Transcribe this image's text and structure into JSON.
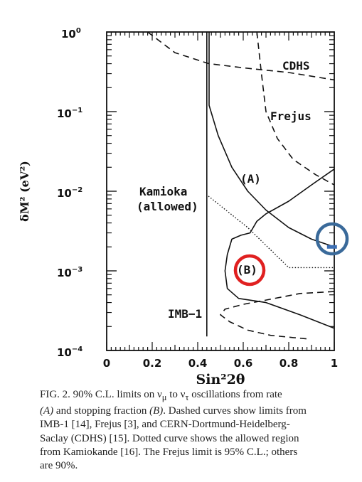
{
  "chart_data": {
    "type": "line",
    "title": "",
    "xlabel": "Sin²2θ",
    "ylabel": "δM² (eV²)",
    "xlim": [
      0,
      1
    ],
    "ylim_log10": [
      -4,
      0
    ],
    "y_scale": "log",
    "x_ticks": [
      "0",
      "0.2",
      "0.4",
      "0.6",
      "0.8",
      "1"
    ],
    "y_ticks": [
      {
        "base": "10",
        "exp": "0"
      },
      {
        "base": "10",
        "exp": "−1"
      },
      {
        "base": "10",
        "exp": "−2"
      },
      {
        "base": "10",
        "exp": "−3"
      },
      {
        "base": "10",
        "exp": "−4"
      }
    ],
    "grid": false,
    "series": [
      {
        "name": "CDHS",
        "style": "dashed",
        "points": [
          [
            0.18,
            1.0
          ],
          [
            0.3,
            0.55
          ],
          [
            0.45,
            0.4
          ],
          [
            0.62,
            0.35
          ],
          [
            0.8,
            0.31
          ],
          [
            1.0,
            0.25
          ]
        ]
      },
      {
        "name": "Frejus",
        "style": "dashed",
        "points": [
          [
            0.66,
            1.0
          ],
          [
            0.68,
            0.3
          ],
          [
            0.7,
            0.1
          ],
          [
            0.75,
            0.046
          ],
          [
            0.82,
            0.025
          ],
          [
            0.92,
            0.016
          ],
          [
            1.0,
            0.012
          ]
        ]
      },
      {
        "name": "IMB-1",
        "style": "dashed",
        "points": [
          [
            1.0,
            0.00055
          ],
          [
            0.85,
            0.00052
          ],
          [
            0.7,
            0.00043
          ],
          [
            0.6,
            0.00038
          ],
          [
            0.52,
            0.00033
          ],
          [
            0.5,
            0.00028
          ],
          [
            0.54,
            0.00023
          ],
          [
            0.62,
            0.00018
          ],
          [
            0.72,
            0.000155
          ],
          [
            0.82,
            0.000145
          ],
          [
            0.88,
            0.00014
          ]
        ]
      },
      {
        "name": "Kamioka (allowed)",
        "style": "dotted",
        "points": [
          [
            0.44,
            1.0
          ],
          [
            0.44,
            0.009
          ],
          [
            0.62,
            0.0035
          ],
          [
            0.8,
            0.0011
          ],
          [
            1.0,
            0.0011
          ]
        ]
      },
      {
        "name": "(A)",
        "style": "solid",
        "points": [
          [
            0.45,
            1.0
          ],
          [
            0.45,
            0.12
          ],
          [
            0.49,
            0.05
          ],
          [
            0.55,
            0.02
          ],
          [
            0.62,
            0.01
          ],
          [
            0.7,
            0.0058
          ],
          [
            0.8,
            0.0035
          ],
          [
            0.9,
            0.0025
          ],
          [
            1.0,
            0.002
          ]
        ]
      },
      {
        "name": "(A) vertical",
        "style": "solid",
        "points": [
          [
            0.44,
            1.0
          ],
          [
            0.44,
            0.00015
          ]
        ]
      },
      {
        "name": "(B)",
        "style": "solid",
        "points": [
          [
            1.0,
            0.019
          ],
          [
            0.9,
            0.012
          ],
          [
            0.8,
            0.0075
          ],
          [
            0.7,
            0.0052
          ],
          [
            0.66,
            0.0042
          ],
          [
            0.63,
            0.003
          ],
          [
            0.59,
            0.0028
          ],
          [
            0.55,
            0.0025
          ],
          [
            0.53,
            0.0016
          ],
          [
            0.52,
            0.001
          ],
          [
            0.53,
            0.0006
          ],
          [
            0.58,
            0.00045
          ],
          [
            0.7,
            0.0004
          ],
          [
            0.85,
            0.00028
          ],
          [
            1.0,
            0.00019
          ]
        ]
      }
    ],
    "annotations": [
      "CDHS",
      "Frejus",
      "(A)",
      "Kamioka",
      "(allowed)",
      "(B)",
      "IMB−1"
    ],
    "highlights": [
      {
        "shape": "circle",
        "color": "#e02020",
        "around": "(B)"
      },
      {
        "shape": "circle",
        "color": "#3a6a9a",
        "around": "right edge near 0.002"
      }
    ],
    "marker": {
      "color": "#3d6fb4",
      "x": 0.99,
      "y": 0.002
    }
  },
  "caption": {
    "line1": "FIG. 2.  90% C.L. limits on ν",
    "line1_sub1": "μ",
    "line1_mid": " to ν",
    "line1_sub2": "τ",
    "line1_end": " oscillations from rate",
    "line2_a": "(A)",
    "line2_mid": " and stopping fraction ",
    "line2_b": "(B)",
    "line2_end": ".  Dashed curves show limits from",
    "line3": "IMB-1 [14], Frejus [3], and CERN-Dortmund-Heidelberg-",
    "line4": "Saclay (CDHS) [15]. Dotted curve shows the allowed region",
    "line5": "from Kamiokande [16]. The Frejus limit is 95% C.L.; others",
    "line6": "are 90%."
  },
  "colors": {
    "ink": "#111111",
    "red_circle": "#e02020",
    "blue_circle": "#3a6a9a",
    "blue_marker": "#3d6fb4"
  }
}
